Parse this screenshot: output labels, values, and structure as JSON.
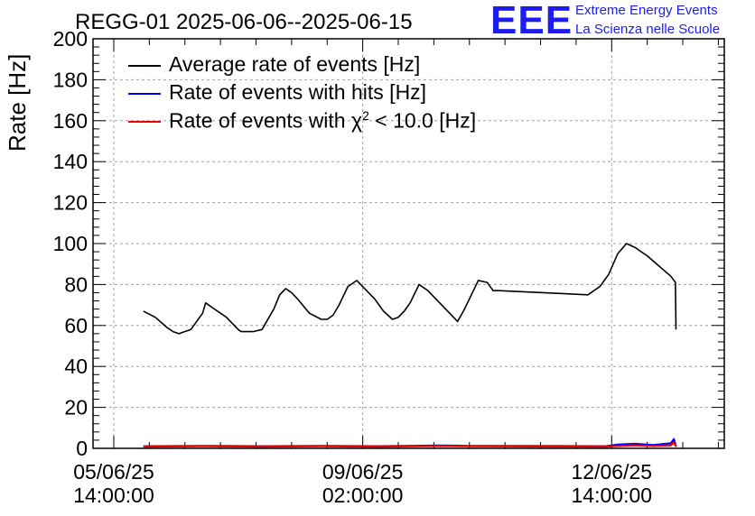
{
  "chart_data": {
    "type": "line",
    "title": "REGG-01 2025-06-06--2025-06-15",
    "ylabel": "Rate [Hz]",
    "xlabel": "",
    "ylim": [
      0,
      200
    ],
    "yticks": [
      "0",
      "20",
      "40",
      "60",
      "80",
      "100",
      "120",
      "140",
      "160",
      "180",
      "200"
    ],
    "xticks": [
      {
        "date": "05/06/25",
        "time": "14:00:00",
        "hours": 0
      },
      {
        "date": "09/06/25",
        "time": "02:00:00",
        "hours": 84
      },
      {
        "date": "12/06/25",
        "time": "14:00:00",
        "hours": 168
      }
    ],
    "x_unit": "hours since 05/06/25 14:00:00",
    "xlim": [
      -7,
      206
    ],
    "grid": true,
    "legend_position": "top-left",
    "series": [
      {
        "name": "Average rate of events [Hz]",
        "color": "#000000",
        "x": [
          10,
          14,
          18,
          20,
          22,
          26,
          30,
          31,
          34,
          38,
          42,
          43,
          45,
          47,
          50,
          54,
          56,
          58,
          60,
          62,
          66,
          70,
          72,
          74,
          76,
          79,
          82,
          84,
          86,
          88,
          91,
          94,
          96,
          98,
          100,
          103,
          106,
          116,
          118,
          120,
          123,
          126,
          128,
          130,
          160,
          164,
          167,
          170,
          173,
          176,
          178,
          180,
          184,
          188,
          189.5,
          189.7
        ],
        "values": [
          67,
          64,
          59,
          57,
          56,
          58,
          66,
          71,
          68,
          64,
          58,
          57,
          57,
          57,
          58,
          68,
          75,
          78,
          76,
          73,
          66,
          63,
          63,
          65,
          70,
          79,
          82,
          79,
          76,
          73,
          67,
          63,
          64,
          67,
          71,
          80,
          77,
          62,
          67,
          73,
          82,
          81,
          77,
          77,
          75,
          79,
          85,
          95,
          100,
          98,
          96,
          94,
          89,
          84,
          81,
          58
        ]
      },
      {
        "name": "Rate of events with hits [Hz]",
        "color": "#0000ee",
        "x": [
          10,
          30,
          50,
          70,
          90,
          110,
          120,
          150,
          166,
          170,
          176,
          182,
          188,
          189,
          189.7
        ],
        "values": [
          1,
          1.2,
          1,
          1.2,
          1,
          1.4,
          1.2,
          1.1,
          1,
          1.8,
          2.2,
          1.6,
          2.5,
          4.5,
          1
        ]
      },
      {
        "name": "Rate of events with χ² < 10.0 [Hz]",
        "color": "#ee0000",
        "x": [
          10,
          30,
          50,
          70,
          90,
          110,
          120,
          150,
          166,
          170,
          176,
          182,
          188,
          189,
          189.7
        ],
        "values": [
          0.8,
          1,
          0.8,
          1,
          0.8,
          1.2,
          1,
          0.9,
          0.8,
          1.2,
          1.5,
          1.2,
          1.5,
          3,
          0.8
        ]
      }
    ]
  },
  "legend": {
    "item0": "Average rate of events [Hz]",
    "item1": "Rate of events with hits [Hz]",
    "item2_prefix": "Rate of events with χ",
    "item2_sup": "2",
    "item2_suffix": " < 10.0 [Hz]"
  },
  "logo": {
    "mark": "EEE",
    "line1": "Extreme Energy Events",
    "line2": "La Scienza nelle Scuole",
    "color": "#1d1df0"
  }
}
